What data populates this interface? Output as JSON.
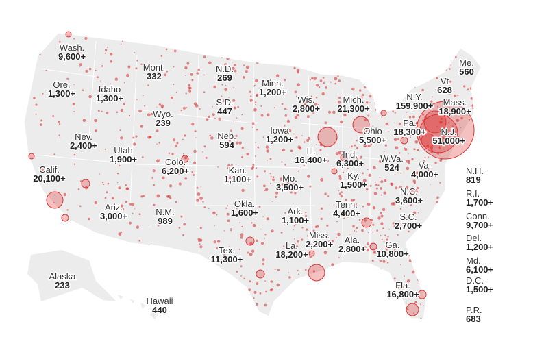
{
  "map": {
    "labels": [
      {
        "name": "Wash.",
        "count": "9,600+"
      },
      {
        "name": "Ore.",
        "count": "1,300+"
      },
      {
        "name": "Idaho",
        "count": "1,300+"
      },
      {
        "name": "Mont.",
        "count": "332"
      },
      {
        "name": "Wyo.",
        "count": "239"
      },
      {
        "name": "Nev.",
        "count": "2,400+"
      },
      {
        "name": "Utah",
        "count": "1,900+"
      },
      {
        "name": "Colo.",
        "count": "6,200+"
      },
      {
        "name": "Calif.",
        "count": "20,100+"
      },
      {
        "name": "Ariz.",
        "count": "3,000+"
      },
      {
        "name": "N.M.",
        "count": "989"
      },
      {
        "name": "N.D.",
        "count": "269"
      },
      {
        "name": "S.D.",
        "count": "447"
      },
      {
        "name": "Neb.",
        "count": "594"
      },
      {
        "name": "Kan.",
        "count": "1,100+"
      },
      {
        "name": "Okla.",
        "count": "1,600+"
      },
      {
        "name": "Tex.",
        "count": "11,300+"
      },
      {
        "name": "Minn.",
        "count": "1,200+"
      },
      {
        "name": "Iowa",
        "count": "1,200+"
      },
      {
        "name": "Mo.",
        "count": "3,500+"
      },
      {
        "name": "Ark.",
        "count": "1,100+"
      },
      {
        "name": "La.",
        "count": "18,200+"
      },
      {
        "name": "Wis.",
        "count": "2,800+"
      },
      {
        "name": "Ill.",
        "count": "16,400+"
      },
      {
        "name": "Miss.",
        "count": "2,200+"
      },
      {
        "name": "Mich.",
        "count": "21,300+"
      },
      {
        "name": "Ind.",
        "count": "6,300+"
      },
      {
        "name": "Ohio",
        "count": "5,500+"
      },
      {
        "name": "Ky.",
        "count": "1,500+"
      },
      {
        "name": "Tenn.",
        "count": "4,400+"
      },
      {
        "name": "Ala.",
        "count": "2,800+"
      },
      {
        "name": "Ga.",
        "count": "10,800+"
      },
      {
        "name": "Fla.",
        "count": "16,800+"
      },
      {
        "name": "S.C.",
        "count": "2,700+"
      },
      {
        "name": "N.C.",
        "count": "3,600+"
      },
      {
        "name": "Va.",
        "count": "4,000+"
      },
      {
        "name": "W.Va.",
        "count": "524"
      },
      {
        "name": "Pa.",
        "count": "18,300+"
      },
      {
        "name": "N.Y.",
        "count": "159,900+"
      },
      {
        "name": "N.J.",
        "count": "51,000+"
      },
      {
        "name": "Vt",
        "count": "628"
      },
      {
        "name": "Mass.",
        "count": "18,900+"
      },
      {
        "name": "Me.",
        "count": "560"
      },
      {
        "name": "Alaska",
        "count": "233"
      },
      {
        "name": "Hawaii",
        "count": "440"
      },
      {
        "name": "N.H.",
        "count": "819"
      },
      {
        "name": "R.I.",
        "count": "1,700+"
      },
      {
        "name": "Conn.",
        "count": "9,700+"
      },
      {
        "name": "Del.",
        "count": "1,200+"
      },
      {
        "name": "Md.",
        "count": "6,100+"
      },
      {
        "name": "D.C.",
        "count": "1,500+"
      },
      {
        "name": "P.R.",
        "count": "683"
      }
    ]
  }
}
